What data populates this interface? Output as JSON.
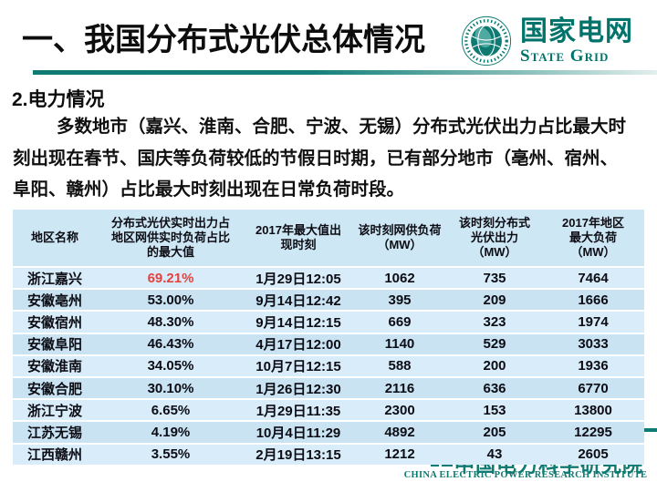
{
  "slide": {
    "title": "一、我国分布式光伏总体情况",
    "section_heading": "2.电力情况",
    "paragraph_full": "多数地市（嘉兴、淮南、合肥、宁波、无锡）分布式光伏出力占比最大时刻出现在春节、国庆等负荷较低的节假日时期，已有部分地市（亳州、宿州、阜阳、赣州）占比最大时刻出现在日常负荷时段。",
    "paragraph_lines": [
      "多数地市（嘉兴、淮南、合肥、宁波、无锡）分布式光伏出力占比最大时",
      "刻出现在春节、国庆等负荷较低的节假日时期，已有部分地市（亳州、宿州、",
      "阜阳、赣州）占比最大时刻出现在日常负荷时段。"
    ]
  },
  "logo": {
    "cn": "国家电网",
    "en": "State Grid"
  },
  "footer": {
    "cn": "中国电力科学研究院",
    "en": "CHINA ELECTRIC POWER RESEARCH INSTITUTE"
  },
  "colors": {
    "brand_teal": "#00736B",
    "divider_teal": "#0F7A72",
    "table_header_bg": "#CEE7F4",
    "table_row_light": "#D8ECF9",
    "table_row_dark": "#C9E3F2",
    "highlight_red": "#E8413D"
  },
  "table": {
    "headers": [
      "地区名称",
      "分布式光伏实时出力占地区网供实时负荷占比的最大值",
      "2017年最大值出现时刻",
      "该时刻网供负荷（MW）",
      "该时刻分布式光伏出力（MW）",
      "2017年地区最大负荷（MW）"
    ],
    "rows": [
      [
        "浙江嘉兴",
        "69.21%",
        "1月29日12:05",
        "1062",
        "735",
        "7464"
      ],
      [
        "安徽亳州",
        "53.00%",
        "9月14日12:42",
        "395",
        "209",
        "1666"
      ],
      [
        "安徽宿州",
        "48.30%",
        "9月14日12:15",
        "669",
        "323",
        "1974"
      ],
      [
        "安徽阜阳",
        "46.43%",
        "4月17日12:00",
        "1140",
        "529",
        "3033"
      ],
      [
        "安徽淮南",
        "34.05%",
        "10月7日12:15",
        "588",
        "200",
        "1936"
      ],
      [
        "安徽合肥",
        "30.10%",
        "1月26日12:30",
        "2116",
        "636",
        "6770"
      ],
      [
        "浙江宁波",
        "6.65%",
        "1月29日11:35",
        "2300",
        "153",
        "13800"
      ],
      [
        "江苏无锡",
        "4.19%",
        "10月4日11:29",
        "4892",
        "205",
        "12295"
      ],
      [
        "江西赣州",
        "3.55%",
        "2月19日13:15",
        "1212",
        "43",
        "2605"
      ]
    ],
    "highlight": {
      "row": 0,
      "col": 1
    }
  }
}
